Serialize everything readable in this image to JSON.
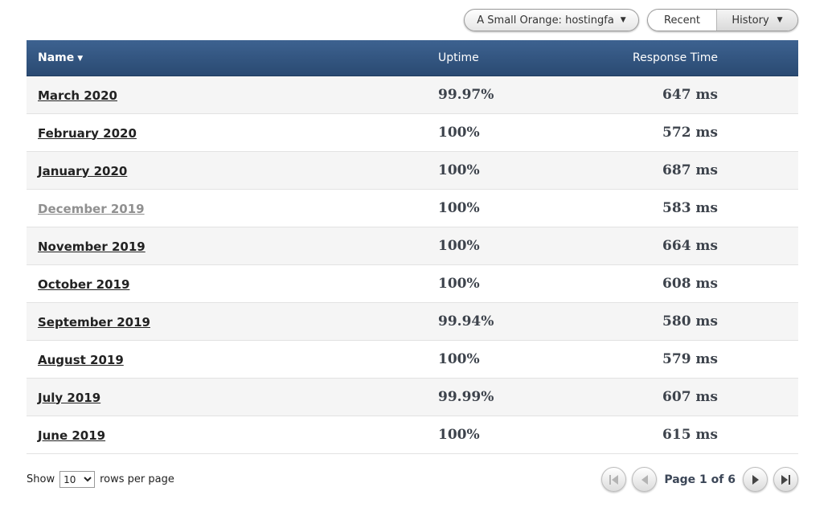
{
  "controls": {
    "monitor_dropdown": {
      "label": "A Small Orange: hostingfa",
      "caret": "▼"
    },
    "view_toggle": {
      "recent_label": "Recent",
      "history_label": "History",
      "history_caret": "▼",
      "selected": "History"
    }
  },
  "table": {
    "columns": {
      "name": "Name",
      "uptime": "Uptime",
      "response": "Response Time"
    },
    "name_sort_caret": "▼",
    "rows": [
      {
        "name": "March 2020",
        "uptime": "99.97%",
        "response": "647 ms",
        "visited": false
      },
      {
        "name": "February 2020",
        "uptime": "100%",
        "response": "572 ms",
        "visited": false
      },
      {
        "name": "January 2020",
        "uptime": "100%",
        "response": "687 ms",
        "visited": false
      },
      {
        "name": "December 2019",
        "uptime": "100%",
        "response": "583 ms",
        "visited": true
      },
      {
        "name": "November 2019",
        "uptime": "100%",
        "response": "664 ms",
        "visited": false
      },
      {
        "name": "October 2019",
        "uptime": "100%",
        "response": "608 ms",
        "visited": false
      },
      {
        "name": "September 2019",
        "uptime": "99.94%",
        "response": "580 ms",
        "visited": false
      },
      {
        "name": "August 2019",
        "uptime": "100%",
        "response": "579 ms",
        "visited": false
      },
      {
        "name": "July 2019",
        "uptime": "99.99%",
        "response": "607 ms",
        "visited": false
      },
      {
        "name": "June 2019",
        "uptime": "100%",
        "response": "615 ms",
        "visited": false
      }
    ]
  },
  "footer": {
    "show_label": "Show",
    "rows_per_page_value": "10",
    "rows_per_page_suffix": "rows per page",
    "page_status": "Page 1 of 6"
  },
  "colors": {
    "header_gradient_top": "#3d6290",
    "header_gradient_bottom": "#2a4a72",
    "alt_row": "#f5f5f5",
    "link": "#222222",
    "visited_link": "#909090",
    "value_text": "#3d434c"
  }
}
